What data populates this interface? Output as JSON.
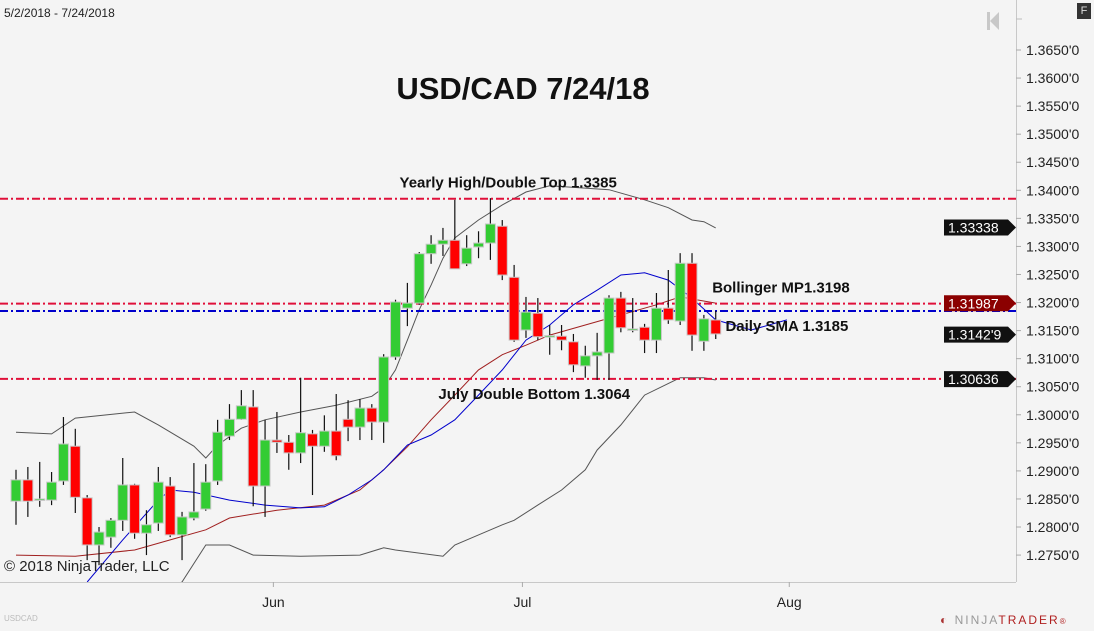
{
  "header": {
    "date_range": "5/2/2018 - 7/24/2018",
    "f_button": "F",
    "symbol": "USDCAD"
  },
  "branding": {
    "copyright": "© 2018 NinjaTrader, LLC",
    "logo_left": "NINJA",
    "logo_right": "TRADER",
    "logo_mark": "®"
  },
  "icons": {
    "back_to_start": "skip-back-icon"
  },
  "colors": {
    "up": "#33cc33",
    "down": "#ff0000",
    "level": "#e0103a",
    "sma": "#0000cc",
    "bb_mid": "#a02020",
    "bb_band": "#555555",
    "marker_dark": "#111111",
    "marker_red": "#8b0000"
  },
  "chart_data": {
    "type": "candlestick",
    "title": "USD/CAD 7/24/18",
    "ylim": [
      1.2715,
      1.368
    ],
    "yticks": [
      "1.3650'0",
      "1.3600'0",
      "1.3550'0",
      "1.3500'0",
      "1.3450'0",
      "1.3400'0",
      "1.3350'0",
      "1.3300'0",
      "1.3250'0",
      "1.3200'0",
      "1.3150'0",
      "1.3100'0",
      "1.3050'0",
      "1.3000'0",
      "1.2950'0",
      "1.2900'0",
      "1.2850'0",
      "1.2800'0",
      "1.2750'0"
    ],
    "ytick_values": [
      1.365,
      1.36,
      1.355,
      1.35,
      1.345,
      1.34,
      1.335,
      1.33,
      1.325,
      1.32,
      1.315,
      1.31,
      1.305,
      1.3,
      1.295,
      1.29,
      1.285,
      1.28,
      1.275
    ],
    "xticks": [
      {
        "label": "Jun",
        "index": 21.7
      },
      {
        "label": "Jul",
        "index": 42.7
      },
      {
        "label": "Aug",
        "index": 65.2
      }
    ],
    "grid": false,
    "ohlc": [
      [
        1.2846,
        1.2902,
        1.2804,
        1.2884
      ],
      [
        1.2884,
        1.2907,
        1.2818,
        1.2846
      ],
      [
        1.2848,
        1.2916,
        1.2836,
        1.285
      ],
      [
        1.2848,
        1.2898,
        1.2839,
        1.288
      ],
      [
        1.2882,
        1.2996,
        1.2875,
        1.2948
      ],
      [
        1.2944,
        1.2975,
        1.2825,
        1.2853
      ],
      [
        1.2852,
        1.2857,
        1.2741,
        1.2768
      ],
      [
        1.2768,
        1.28,
        1.2732,
        1.2791
      ],
      [
        1.2782,
        1.2816,
        1.2763,
        1.2812
      ],
      [
        1.2812,
        1.2923,
        1.2793,
        1.2875
      ],
      [
        1.2875,
        1.2877,
        1.2779,
        1.2789
      ],
      [
        1.2789,
        1.283,
        1.275,
        1.2804
      ],
      [
        1.2807,
        1.2907,
        1.2793,
        1.288
      ],
      [
        1.2873,
        1.2889,
        1.2782,
        1.2786
      ],
      [
        1.2786,
        1.2827,
        1.2741,
        1.2818
      ],
      [
        1.2816,
        1.2914,
        1.2812,
        1.2827
      ],
      [
        1.2832,
        1.2912,
        1.2829,
        1.288
      ],
      [
        1.2882,
        1.2991,
        1.2875,
        1.2969
      ],
      [
        1.2962,
        1.3019,
        1.2955,
        1.2992
      ],
      [
        1.2992,
        1.3044,
        1.2991,
        1.3016
      ],
      [
        1.3014,
        1.3044,
        1.2837,
        1.2873
      ],
      [
        1.2873,
        1.2991,
        1.2818,
        1.2955
      ],
      [
        1.2955,
        1.3005,
        1.2932,
        1.2951
      ],
      [
        1.2951,
        1.2964,
        1.2902,
        1.2932
      ],
      [
        1.2932,
        1.3066,
        1.2914,
        1.2968
      ],
      [
        1.2966,
        1.2973,
        1.2857,
        1.2944
      ],
      [
        1.2944,
        1.2999,
        1.2934,
        1.2971
      ],
      [
        1.2971,
        1.3037,
        1.2919,
        1.2927
      ],
      [
        1.2992,
        1.3026,
        1.2953,
        1.2978
      ],
      [
        1.2978,
        1.3028,
        1.2955,
        1.3012
      ],
      [
        1.3012,
        1.3019,
        1.2955,
        1.2987
      ],
      [
        1.2987,
        1.3108,
        1.295,
        1.3103
      ],
      [
        1.3103,
        1.3205,
        1.3098,
        1.3201
      ],
      [
        1.319,
        1.3235,
        1.3158,
        1.3199
      ],
      [
        1.3199,
        1.329,
        1.3196,
        1.3287
      ],
      [
        1.3287,
        1.332,
        1.3269,
        1.3304
      ],
      [
        1.3304,
        1.3333,
        1.3283,
        1.3311
      ],
      [
        1.3311,
        1.3383,
        1.326,
        1.326
      ],
      [
        1.3269,
        1.332,
        1.3265,
        1.3297
      ],
      [
        1.3299,
        1.3327,
        1.3279,
        1.3306
      ],
      [
        1.3306,
        1.3386,
        1.3276,
        1.334
      ],
      [
        1.3336,
        1.3347,
        1.324,
        1.3249
      ],
      [
        1.3245,
        1.3267,
        1.313,
        1.3133
      ],
      [
        1.3151,
        1.321,
        1.3137,
        1.3183
      ],
      [
        1.3181,
        1.3208,
        1.3133,
        1.3139
      ],
      [
        1.314,
        1.316,
        1.3107,
        1.3141
      ],
      [
        1.314,
        1.316,
        1.3115,
        1.3133
      ],
      [
        1.313,
        1.3144,
        1.3076,
        1.3089
      ],
      [
        1.3087,
        1.3123,
        1.3066,
        1.3105
      ],
      [
        1.3105,
        1.3146,
        1.3062,
        1.3112
      ],
      [
        1.311,
        1.3213,
        1.3062,
        1.3208
      ],
      [
        1.3208,
        1.3219,
        1.3147,
        1.3155
      ],
      [
        1.3151,
        1.3208,
        1.3147,
        1.3153
      ],
      [
        1.3156,
        1.3162,
        1.311,
        1.3133
      ],
      [
        1.3133,
        1.3217,
        1.311,
        1.319
      ],
      [
        1.319,
        1.3258,
        1.3162,
        1.3169
      ],
      [
        1.3167,
        1.3288,
        1.316,
        1.327
      ],
      [
        1.327,
        1.3288,
        1.3114,
        1.3142
      ],
      [
        1.3131,
        1.3178,
        1.3114,
        1.3171
      ],
      [
        1.3169,
        1.3185,
        1.3135,
        1.3144
      ]
    ],
    "indicators": {
      "bb_upper": [
        [
          0,
          1.2969
        ],
        [
          3,
          1.2966
        ],
        [
          5,
          1.2994
        ],
        [
          10,
          1.3005
        ],
        [
          12,
          1.2982
        ],
        [
          15,
          1.2944
        ],
        [
          16,
          1.2923
        ],
        [
          17,
          1.2946
        ],
        [
          19,
          1.2976
        ],
        [
          21,
          1.2991
        ],
        [
          24,
          1.3005
        ],
        [
          27,
          1.3017
        ],
        [
          30,
          1.3033
        ],
        [
          31,
          1.3048
        ],
        [
          32,
          1.308
        ],
        [
          33,
          1.3133
        ],
        [
          34,
          1.3187
        ],
        [
          35,
          1.3231
        ],
        [
          36,
          1.3279
        ],
        [
          37,
          1.3315
        ],
        [
          39,
          1.3347
        ],
        [
          41,
          1.3374
        ],
        [
          43,
          1.3397
        ],
        [
          45,
          1.3408
        ],
        [
          50,
          1.3401
        ],
        [
          53,
          1.3383
        ],
        [
          55,
          1.3369
        ],
        [
          57,
          1.3347
        ],
        [
          58,
          1.3344
        ],
        [
          59,
          1.3333
        ]
      ],
      "bb_middle": [
        [
          0,
          1.275
        ],
        [
          5,
          1.2748
        ],
        [
          10,
          1.2759
        ],
        [
          13,
          1.2777
        ],
        [
          16,
          1.2795
        ],
        [
          18,
          1.2816
        ],
        [
          22,
          1.283
        ],
        [
          26,
          1.2839
        ],
        [
          29,
          1.2866
        ],
        [
          31,
          1.2902
        ],
        [
          33,
          1.2943
        ],
        [
          35,
          1.2991
        ],
        [
          37,
          1.3035
        ],
        [
          39,
          1.308
        ],
        [
          41,
          1.3107
        ],
        [
          43,
          1.3124
        ],
        [
          45,
          1.3142
        ],
        [
          48,
          1.316
        ],
        [
          51,
          1.3178
        ],
        [
          54,
          1.3196
        ],
        [
          56,
          1.321
        ],
        [
          59,
          1.3199
        ]
      ],
      "bb_lower": [
        [
          12,
          1.268
        ],
        [
          14,
          1.2702
        ],
        [
          16,
          1.2768
        ],
        [
          18,
          1.2768
        ],
        [
          20,
          1.275
        ],
        [
          24,
          1.2748
        ],
        [
          29,
          1.275
        ],
        [
          31,
          1.2763
        ],
        [
          32,
          1.2759
        ],
        [
          36,
          1.2748
        ],
        [
          37,
          1.2768
        ],
        [
          39,
          1.2786
        ],
        [
          41,
          1.2804
        ],
        [
          42,
          1.2812
        ],
        [
          44,
          1.2839
        ],
        [
          46,
          1.2866
        ],
        [
          48,
          1.2902
        ],
        [
          49,
          1.2937
        ],
        [
          51,
          1.2982
        ],
        [
          53,
          1.3035
        ],
        [
          56,
          1.3066
        ],
        [
          58,
          1.3066
        ],
        [
          59,
          1.3062
        ]
      ],
      "sma": [
        [
          6,
          1.2702
        ],
        [
          9,
          1.2777
        ],
        [
          12,
          1.2848
        ],
        [
          13,
          1.2866
        ],
        [
          15,
          1.2862
        ],
        [
          18,
          1.2848
        ],
        [
          21,
          1.2839
        ],
        [
          24,
          1.2834
        ],
        [
          26,
          1.2836
        ],
        [
          28,
          1.2857
        ],
        [
          30,
          1.2884
        ],
        [
          31,
          1.2902
        ],
        [
          33,
          1.2946
        ],
        [
          35,
          1.2964
        ],
        [
          37,
          1.2991
        ],
        [
          39,
          1.3035
        ],
        [
          41,
          1.308
        ],
        [
          43,
          1.3133
        ],
        [
          45,
          1.316
        ],
        [
          47,
          1.3196
        ],
        [
          49,
          1.3222
        ],
        [
          51,
          1.3249
        ],
        [
          53,
          1.3253
        ],
        [
          55,
          1.324
        ],
        [
          57,
          1.3208
        ],
        [
          59,
          1.3169
        ],
        [
          62,
          1.3151
        ],
        [
          65,
          1.3169
        ]
      ]
    },
    "levels": [
      {
        "value": 1.3385,
        "color": "#e0103a",
        "label": "Yearly High/Double Top 1.3385",
        "label_index": 41.5,
        "label_pos": "above"
      },
      {
        "value": 1.3198,
        "color": "#e0103a",
        "label": "Bollinger MP1.3198",
        "label_index": 64.5,
        "label_pos": "above"
      },
      {
        "value": 1.3185,
        "color": "#0000cc",
        "label": "Daily SMA 1.3185",
        "label_index": 65,
        "label_pos": "below"
      },
      {
        "value": 1.3064,
        "color": "#e0103a",
        "label": "July Double Bottom 1.3064",
        "label_index": 43.7,
        "label_pos": "below"
      }
    ],
    "price_markers": [
      {
        "value": 1.33338,
        "label": "1.33338",
        "color": "#111111"
      },
      {
        "value": 1.31987,
        "label": "1.31987",
        "color": "#8b0000"
      },
      {
        "value": 1.31429,
        "label": "1.3142'9",
        "color": "#111111"
      },
      {
        "value": 1.30636,
        "label": "1.30636",
        "color": "#111111"
      }
    ]
  }
}
